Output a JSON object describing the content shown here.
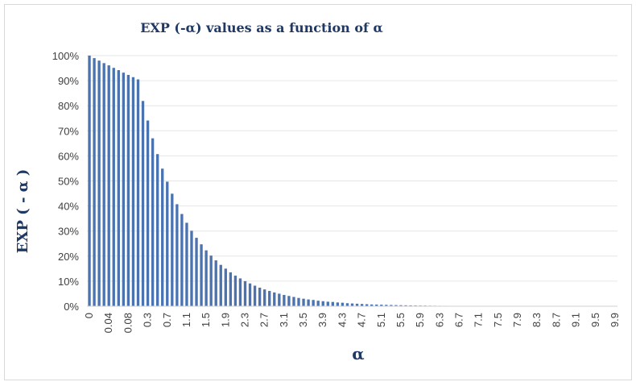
{
  "chart_data": {
    "type": "bar",
    "title": "EXP (-α) values as a function of α",
    "xlabel": "α",
    "ylabel": "EXP ( - α )",
    "ylim": [
      0,
      1
    ],
    "y_ticks": [
      "0%",
      "10%",
      "20%",
      "30%",
      "40%",
      "50%",
      "60%",
      "70%",
      "80%",
      "90%",
      "100%"
    ],
    "categories": [
      "0",
      "0.01",
      "0.02",
      "0.03",
      "0.04",
      "0.05",
      "0.06",
      "0.07",
      "0.08",
      "0.09",
      "0.1",
      "0.2",
      "0.3",
      "0.4",
      "0.5",
      "0.6",
      "0.7",
      "0.8",
      "0.9",
      "1",
      "1.1",
      "1.2",
      "1.3",
      "1.4",
      "1.5",
      "1.6",
      "1.7",
      "1.8",
      "1.9",
      "2",
      "2.1",
      "2.2",
      "2.3",
      "2.4",
      "2.5",
      "2.6",
      "2.7",
      "2.8",
      "2.9",
      "3",
      "3.1",
      "3.2",
      "3.3",
      "3.4",
      "3.5",
      "3.6",
      "3.7",
      "3.8",
      "3.9",
      "4",
      "4.1",
      "4.2",
      "4.3",
      "4.4",
      "4.5",
      "4.6",
      "4.7",
      "4.8",
      "4.9",
      "5",
      "5.1",
      "5.2",
      "5.3",
      "5.4",
      "5.5",
      "5.6",
      "5.7",
      "5.8",
      "5.9",
      "6",
      "6.1",
      "6.2",
      "6.3",
      "6.4",
      "6.5",
      "6.6",
      "6.7",
      "6.8",
      "6.9",
      "7",
      "7.1",
      "7.2",
      "7.3",
      "7.4",
      "7.5",
      "7.6",
      "7.7",
      "7.8",
      "7.9",
      "8",
      "8.1",
      "8.2",
      "8.3",
      "8.4",
      "8.5",
      "8.6",
      "8.7",
      "8.8",
      "8.9",
      "9",
      "9.1",
      "9.2",
      "9.3",
      "9.4",
      "9.5",
      "9.6",
      "9.7",
      "9.8",
      "9.9"
    ],
    "x_tick_labels": [
      "0",
      "0.04",
      "0.08",
      "0.3",
      "0.7",
      "1.1",
      "1.5",
      "1.9",
      "2.3",
      "2.7",
      "3.1",
      "3.5",
      "3.9",
      "4.3",
      "4.7",
      "5.1",
      "5.5",
      "5.9",
      "6.3",
      "6.7",
      "7.1",
      "7.5",
      "7.9",
      "8.3",
      "8.7",
      "9.1",
      "9.5",
      "9.9"
    ],
    "values": [
      1.0,
      0.99,
      0.98,
      0.97,
      0.961,
      0.951,
      0.942,
      0.932,
      0.923,
      0.914,
      0.905,
      0.819,
      0.741,
      0.67,
      0.607,
      0.549,
      0.497,
      0.449,
      0.407,
      0.368,
      0.333,
      0.301,
      0.273,
      0.247,
      0.223,
      0.202,
      0.183,
      0.165,
      0.15,
      0.135,
      0.122,
      0.111,
      0.1,
      0.091,
      0.082,
      0.074,
      0.067,
      0.061,
      0.055,
      0.05,
      0.045,
      0.041,
      0.037,
      0.033,
      0.03,
      0.027,
      0.025,
      0.022,
      0.02,
      0.018,
      0.017,
      0.015,
      0.014,
      0.012,
      0.011,
      0.01,
      0.009,
      0.008,
      0.007,
      0.0067,
      0.0061,
      0.0055,
      0.005,
      0.0045,
      0.0041,
      0.0037,
      0.0033,
      0.003,
      0.0027,
      0.0025,
      0.0022,
      0.002,
      0.0018,
      0.0017,
      0.0015,
      0.0014,
      0.0012,
      0.0011,
      0.001,
      0.0009,
      0.0008,
      0.0007,
      0.0007,
      0.0006,
      0.0006,
      0.0005,
      0.0005,
      0.0004,
      0.0004,
      0.0003,
      0.0003,
      0.0003,
      0.0002,
      0.0002,
      0.0002,
      0.0002,
      0.0002,
      0.0002,
      0.0001,
      0.0001,
      0.0001,
      0.0001,
      0.0001,
      0.0001,
      0.0001,
      0.0001,
      0.0001,
      0.0001,
      0.0001
    ],
    "bar_color": "#4a73b0",
    "grid_color": "#e6e6e6",
    "text_color": "#1f3864",
    "grid": true,
    "legend": "none"
  }
}
